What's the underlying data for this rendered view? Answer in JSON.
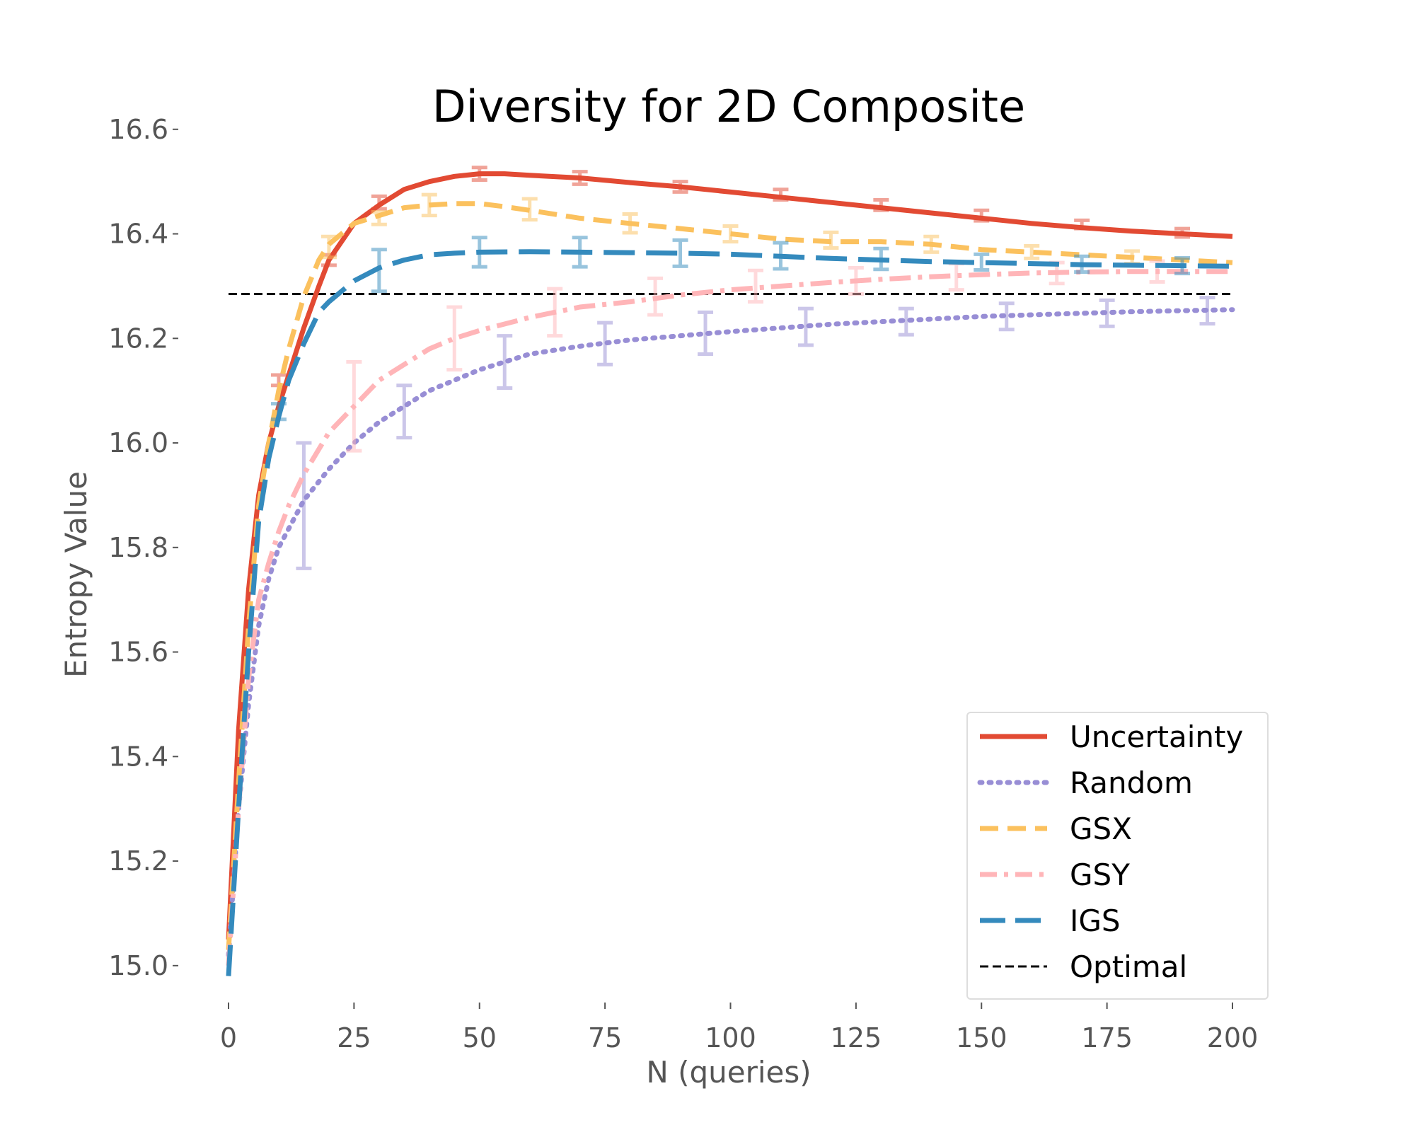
{
  "chart_data": {
    "type": "line",
    "title": "Diversity for 2D Composite",
    "xlabel": "N (queries)",
    "ylabel": "Entropy Value",
    "xlim": [
      0,
      200
    ],
    "ylim": [
      14.97,
      16.62
    ],
    "xticks": [
      0,
      25,
      50,
      75,
      100,
      125,
      150,
      175,
      200
    ],
    "yticks": [
      15.0,
      15.2,
      15.4,
      15.6,
      15.8,
      16.0,
      16.2,
      16.4,
      16.6
    ],
    "xtick_labels": [
      "0",
      "25",
      "50",
      "75",
      "100",
      "125",
      "150",
      "175",
      "200"
    ],
    "ytick_labels": [
      "15.0",
      "15.2",
      "15.4",
      "15.6",
      "15.8",
      "16.0",
      "16.2",
      "16.4",
      "16.6"
    ],
    "grid": false,
    "legend_position": "lower-right",
    "reference_line": {
      "name": "Optimal",
      "y": 16.285,
      "color": "#000000"
    },
    "series": [
      {
        "name": "Uncertainty",
        "color": "#e24a33",
        "style": "solid",
        "x": [
          0,
          2,
          4,
          6,
          8,
          10,
          12,
          15,
          18,
          20,
          25,
          30,
          35,
          40,
          45,
          50,
          55,
          60,
          70,
          80,
          90,
          100,
          110,
          120,
          130,
          140,
          150,
          160,
          170,
          180,
          190,
          200
        ],
        "y": [
          15.05,
          15.45,
          15.72,
          15.9,
          16.0,
          16.07,
          16.13,
          16.22,
          16.3,
          16.35,
          16.42,
          16.455,
          16.485,
          16.5,
          16.51,
          16.515,
          16.515,
          16.512,
          16.507,
          16.498,
          16.49,
          16.48,
          16.47,
          16.46,
          16.45,
          16.44,
          16.43,
          16.42,
          16.412,
          16.405,
          16.4,
          16.395
        ],
        "error_bars": [
          {
            "x": 10,
            "y": 16.12,
            "err": 0.01
          },
          {
            "x": 20,
            "y": 16.35,
            "err": 0.01
          },
          {
            "x": 30,
            "y": 16.46,
            "err": 0.012
          },
          {
            "x": 50,
            "y": 16.515,
            "err": 0.012
          },
          {
            "x": 70,
            "y": 16.507,
            "err": 0.012
          },
          {
            "x": 90,
            "y": 16.49,
            "err": 0.01
          },
          {
            "x": 110,
            "y": 16.475,
            "err": 0.01
          },
          {
            "x": 130,
            "y": 16.455,
            "err": 0.01
          },
          {
            "x": 150,
            "y": 16.435,
            "err": 0.01
          },
          {
            "x": 170,
            "y": 16.418,
            "err": 0.008
          },
          {
            "x": 190,
            "y": 16.402,
            "err": 0.008
          }
        ]
      },
      {
        "name": "Random",
        "color": "#988ed5",
        "style": "dotted",
        "x": [
          0,
          2,
          4,
          6,
          8,
          10,
          15,
          20,
          25,
          30,
          35,
          40,
          45,
          50,
          55,
          60,
          70,
          80,
          90,
          100,
          110,
          120,
          130,
          140,
          150,
          160,
          170,
          180,
          190,
          200
        ],
        "y": [
          15.02,
          15.3,
          15.5,
          15.65,
          15.74,
          15.8,
          15.89,
          15.95,
          16.0,
          16.04,
          16.07,
          16.1,
          16.12,
          16.14,
          16.155,
          16.17,
          16.185,
          16.197,
          16.205,
          16.213,
          16.22,
          16.227,
          16.232,
          16.237,
          16.242,
          16.245,
          16.248,
          16.251,
          16.253,
          16.255
        ],
        "error_bars": [
          {
            "x": 15,
            "y": 15.88,
            "err": 0.12
          },
          {
            "x": 35,
            "y": 16.06,
            "err": 0.05
          },
          {
            "x": 55,
            "y": 16.155,
            "err": 0.05
          },
          {
            "x": 75,
            "y": 16.19,
            "err": 0.04
          },
          {
            "x": 95,
            "y": 16.21,
            "err": 0.04
          },
          {
            "x": 115,
            "y": 16.222,
            "err": 0.035
          },
          {
            "x": 135,
            "y": 16.232,
            "err": 0.025
          },
          {
            "x": 155,
            "y": 16.242,
            "err": 0.025
          },
          {
            "x": 175,
            "y": 16.248,
            "err": 0.025
          },
          {
            "x": 195,
            "y": 16.253,
            "err": 0.025
          }
        ]
      },
      {
        "name": "GSX",
        "color": "#fbc15e",
        "style": "dashed",
        "x": [
          0,
          2,
          4,
          6,
          8,
          10,
          12,
          15,
          18,
          20,
          25,
          30,
          35,
          40,
          45,
          50,
          55,
          60,
          70,
          80,
          90,
          100,
          110,
          120,
          130,
          140,
          150,
          160,
          170,
          180,
          190,
          200
        ],
        "y": [
          15.03,
          15.35,
          15.65,
          15.88,
          16.0,
          16.1,
          16.18,
          16.28,
          16.35,
          16.38,
          16.42,
          16.435,
          16.45,
          16.455,
          16.458,
          16.458,
          16.452,
          16.445,
          16.43,
          16.42,
          16.41,
          16.4,
          16.39,
          16.385,
          16.385,
          16.38,
          16.37,
          16.365,
          16.36,
          16.355,
          16.35,
          16.345
        ],
        "error_bars": [
          {
            "x": 20,
            "y": 16.375,
            "err": 0.02
          },
          {
            "x": 30,
            "y": 16.43,
            "err": 0.012
          },
          {
            "x": 40,
            "y": 16.455,
            "err": 0.02
          },
          {
            "x": 60,
            "y": 16.447,
            "err": 0.02
          },
          {
            "x": 80,
            "y": 16.42,
            "err": 0.018
          },
          {
            "x": 100,
            "y": 16.4,
            "err": 0.015
          },
          {
            "x": 120,
            "y": 16.388,
            "err": 0.015
          },
          {
            "x": 140,
            "y": 16.38,
            "err": 0.015
          },
          {
            "x": 160,
            "y": 16.365,
            "err": 0.012
          },
          {
            "x": 180,
            "y": 16.355,
            "err": 0.012
          }
        ]
      },
      {
        "name": "GSY",
        "color": "#ffb5b8",
        "style": "dashdot",
        "x": [
          0,
          2,
          4,
          6,
          8,
          10,
          12,
          15,
          20,
          25,
          30,
          35,
          40,
          45,
          50,
          60,
          70,
          80,
          90,
          100,
          110,
          120,
          130,
          140,
          150,
          160,
          170,
          180,
          190,
          200
        ],
        "y": [
          15.0,
          15.3,
          15.55,
          15.7,
          15.77,
          15.83,
          15.88,
          15.94,
          16.02,
          16.07,
          16.12,
          16.15,
          16.18,
          16.2,
          16.215,
          16.24,
          16.26,
          16.27,
          16.283,
          16.293,
          16.3,
          16.307,
          16.313,
          16.318,
          16.322,
          16.325,
          16.327,
          16.328,
          16.328,
          16.328
        ],
        "error_bars": [
          {
            "x": 25,
            "y": 16.07,
            "err": 0.085
          },
          {
            "x": 45,
            "y": 16.2,
            "err": 0.06
          },
          {
            "x": 65,
            "y": 16.25,
            "err": 0.045
          },
          {
            "x": 85,
            "y": 16.28,
            "err": 0.035
          },
          {
            "x": 105,
            "y": 16.3,
            "err": 0.03
          },
          {
            "x": 125,
            "y": 16.31,
            "err": 0.025
          },
          {
            "x": 145,
            "y": 16.318,
            "err": 0.025
          },
          {
            "x": 165,
            "y": 16.325,
            "err": 0.02
          },
          {
            "x": 185,
            "y": 16.328,
            "err": 0.02
          }
        ]
      },
      {
        "name": "IGS",
        "color": "#348abd",
        "style": "longdash",
        "x": [
          0,
          2,
          4,
          6,
          8,
          10,
          12,
          15,
          18,
          20,
          25,
          30,
          35,
          40,
          45,
          50,
          60,
          70,
          80,
          90,
          100,
          110,
          120,
          130,
          140,
          150,
          160,
          170,
          180,
          190,
          200
        ],
        "y": [
          14.98,
          15.3,
          15.6,
          15.85,
          15.97,
          16.05,
          16.12,
          16.19,
          16.25,
          16.27,
          16.31,
          16.335,
          16.35,
          16.36,
          16.363,
          16.365,
          16.366,
          16.365,
          16.364,
          16.363,
          16.361,
          16.357,
          16.353,
          16.35,
          16.347,
          16.345,
          16.343,
          16.341,
          16.34,
          16.339,
          16.338
        ],
        "error_bars": [
          {
            "x": 10,
            "y": 16.06,
            "err": 0.015
          },
          {
            "x": 30,
            "y": 16.33,
            "err": 0.04
          },
          {
            "x": 50,
            "y": 16.365,
            "err": 0.028
          },
          {
            "x": 70,
            "y": 16.365,
            "err": 0.028
          },
          {
            "x": 90,
            "y": 16.363,
            "err": 0.025
          },
          {
            "x": 110,
            "y": 16.358,
            "err": 0.025
          },
          {
            "x": 130,
            "y": 16.352,
            "err": 0.02
          },
          {
            "x": 150,
            "y": 16.346,
            "err": 0.015
          },
          {
            "x": 170,
            "y": 16.342,
            "err": 0.015
          },
          {
            "x": 190,
            "y": 16.339,
            "err": 0.015
          }
        ]
      }
    ]
  }
}
